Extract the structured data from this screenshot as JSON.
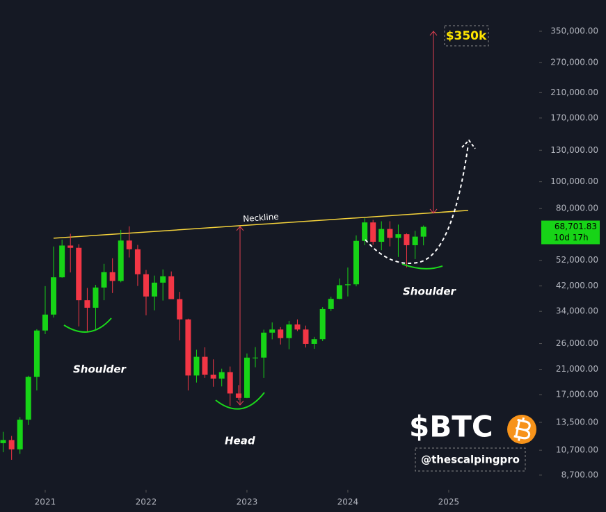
{
  "chart_data": {
    "type": "candlestick",
    "log_scale": true,
    "grid": false,
    "up_color": "#17d417",
    "down_color": "#f23645",
    "x": [
      2020.583,
      2020.667,
      2020.75,
      2020.833,
      2020.917,
      2021.0,
      2021.083,
      2021.167,
      2021.25,
      2021.333,
      2021.417,
      2021.5,
      2021.583,
      2021.667,
      2021.75,
      2021.833,
      2021.917,
      2022.0,
      2022.083,
      2022.167,
      2022.25,
      2022.333,
      2022.417,
      2022.5,
      2022.583,
      2022.667,
      2022.75,
      2022.833,
      2022.917,
      2023.0,
      2023.083,
      2023.167,
      2023.25,
      2023.333,
      2023.417,
      2023.5,
      2023.583,
      2023.667,
      2023.75,
      2023.833,
      2023.917,
      2024.0,
      2024.083,
      2024.167,
      2024.25,
      2024.333,
      2024.417,
      2024.5,
      2024.583,
      2024.667,
      2024.75
    ],
    "open": [
      11350,
      11650,
      10780,
      13800,
      19700,
      28990,
      33100,
      45140,
      58800,
      57700,
      37300,
      35040,
      41460,
      47100,
      43800,
      61300,
      57000,
      46300,
      38480,
      43180,
      45540,
      37640,
      31800,
      19940,
      23290,
      20050,
      19430,
      20490,
      17160,
      16540,
      23130,
      23140,
      28480,
      29230,
      27210,
      30480,
      29230,
      25940,
      26970,
      34650,
      37720,
      42280,
      42580,
      61130,
      71280,
      60670,
      67490,
      62680,
      64620,
      58970,
      63330
    ],
    "high": [
      12470,
      12050,
      14100,
      19900,
      29300,
      41950,
      58350,
      61780,
      64850,
      59500,
      41300,
      42400,
      50500,
      52900,
      67000,
      69000,
      59100,
      47990,
      45800,
      48200,
      47400,
      40000,
      31990,
      24700,
      25200,
      22800,
      21100,
      21480,
      18400,
      23950,
      25250,
      29200,
      31000,
      29820,
      31400,
      31800,
      30200,
      27500,
      35200,
      38400,
      44700,
      48970,
      64000,
      73780,
      72800,
      71950,
      71980,
      70000,
      65100,
      66500,
      69500
    ],
    "low": [
      10530,
      9880,
      10380,
      13200,
      17600,
      28130,
      32300,
      45000,
      47000,
      30000,
      28800,
      29300,
      37300,
      39600,
      43300,
      53250,
      42000,
      32900,
      34300,
      37200,
      37700,
      26700,
      17600,
      18800,
      19550,
      18150,
      18200,
      15480,
      16250,
      16500,
      21350,
      19550,
      26940,
      25800,
      24800,
      28860,
      25160,
      24900,
      26550,
      34100,
      37600,
      38500,
      41880,
      59000,
      59190,
      56550,
      58400,
      53500,
      49000,
      52550,
      58900
    ],
    "close": [
      11650,
      10780,
      13800,
      19700,
      28990,
      33100,
      45140,
      58800,
      57700,
      37300,
      35040,
      41460,
      47100,
      43800,
      61300,
      57000,
      46300,
      38480,
      43180,
      45540,
      37640,
      31800,
      19940,
      23290,
      20050,
      19430,
      20490,
      17160,
      16540,
      23130,
      23140,
      28480,
      29230,
      27210,
      30480,
      29230,
      25940,
      26970,
      34650,
      37720,
      42280,
      42580,
      61130,
      71280,
      60670,
      67490,
      62680,
      64620,
      58970,
      63330,
      68701.83
    ],
    "xlim": [
      2020.552,
      2025.897
    ],
    "xticks": [
      2021,
      2022,
      2023,
      2024,
      2025
    ],
    "ylim": [
      7700,
      454000
    ],
    "yticks": [
      {
        "value": 8700,
        "label": "8,700.00"
      },
      {
        "value": 10700,
        "label": "10,700.00"
      },
      {
        "value": 13500,
        "label": "13,500.00"
      },
      {
        "value": 17000,
        "label": "17,000.00"
      },
      {
        "value": 21000,
        "label": "21,000.00"
      },
      {
        "value": 26000,
        "label": "26,000.00"
      },
      {
        "value": 34000,
        "label": "34,000.00"
      },
      {
        "value": 42000,
        "label": "42,000.00"
      },
      {
        "value": 52000,
        "label": "52,000.00"
      },
      {
        "value": 80000,
        "label": "80,000.00"
      },
      {
        "value": 100000,
        "label": "100,000.00"
      },
      {
        "value": 130000,
        "label": "130,000.00"
      },
      {
        "value": 170000,
        "label": "170,000.00"
      },
      {
        "value": 210000,
        "label": "210,000.00"
      },
      {
        "value": 270000,
        "label": "270,000.00"
      },
      {
        "value": 350000,
        "label": "350,000.00"
      }
    ],
    "current_price": {
      "value": 68701.83,
      "label": "68,701.83"
    },
    "countdown": "10d 17h",
    "neckline": {
      "label": "Neckline",
      "color": "#f5d33b",
      "x": [
        2021.083,
        2025.193
      ],
      "y": [
        62500,
        78770
      ]
    },
    "annotations": {
      "left_shoulder": "Shoulder",
      "head": "Head",
      "right_shoulder": "Shoulder",
      "target": "$350k"
    }
  },
  "branding": {
    "ticker": "$BTC",
    "handle": "@thescalpingpro"
  }
}
